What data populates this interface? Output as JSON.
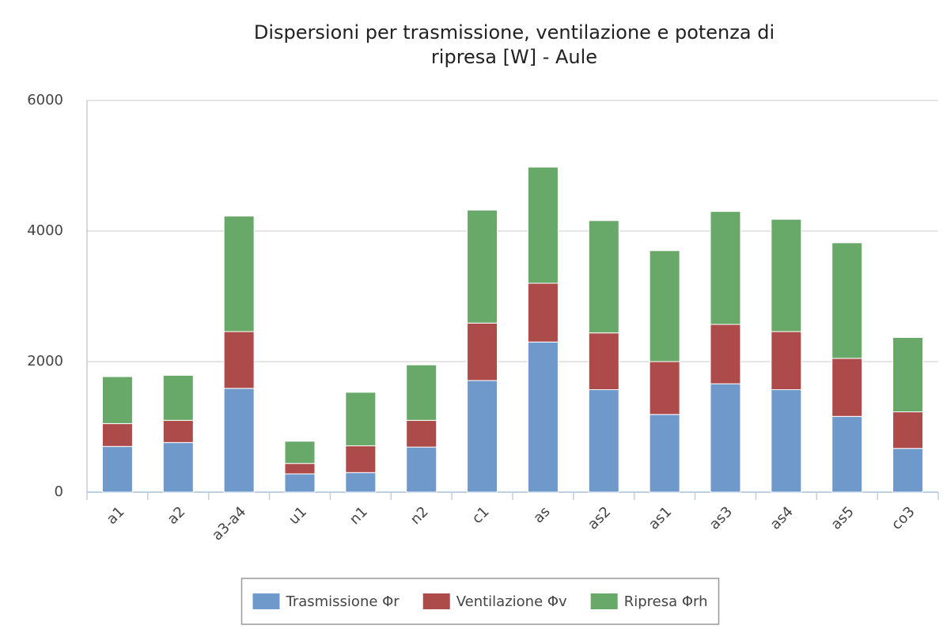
{
  "chart_data": {
    "type": "stacked_bar",
    "title": "Dispersioni per trasmissione, ventilazione e potenza di ripresa [W] - Aule",
    "categories": [
      "a1",
      "a2",
      "a3-a4",
      "u1",
      "n1",
      "n2",
      "c1",
      "as",
      "as2",
      "as1",
      "as3",
      "as4",
      "as5",
      "co3"
    ],
    "series": [
      {
        "name": "Trasmissione Φr",
        "color": "#6f98cb",
        "values": [
          700,
          760,
          1590,
          280,
          300,
          690,
          1710,
          2300,
          1570,
          1190,
          1660,
          1570,
          1160,
          670
        ]
      },
      {
        "name": "Ventilazione Φv",
        "color": "#ad4a4a",
        "values": [
          350,
          340,
          870,
          160,
          410,
          410,
          880,
          900,
          870,
          810,
          910,
          890,
          890,
          560
        ]
      },
      {
        "name": "Ripresa Φrh",
        "color": "#68a868",
        "values": [
          720,
          690,
          1770,
          340,
          820,
          850,
          1730,
          1780,
          1720,
          1700,
          1730,
          1720,
          1770,
          1140
        ]
      }
    ],
    "ylim": [
      0,
      6000
    ],
    "yticks": [
      0,
      2000,
      4000,
      6000
    ],
    "grid": true,
    "legend": "bottom"
  }
}
